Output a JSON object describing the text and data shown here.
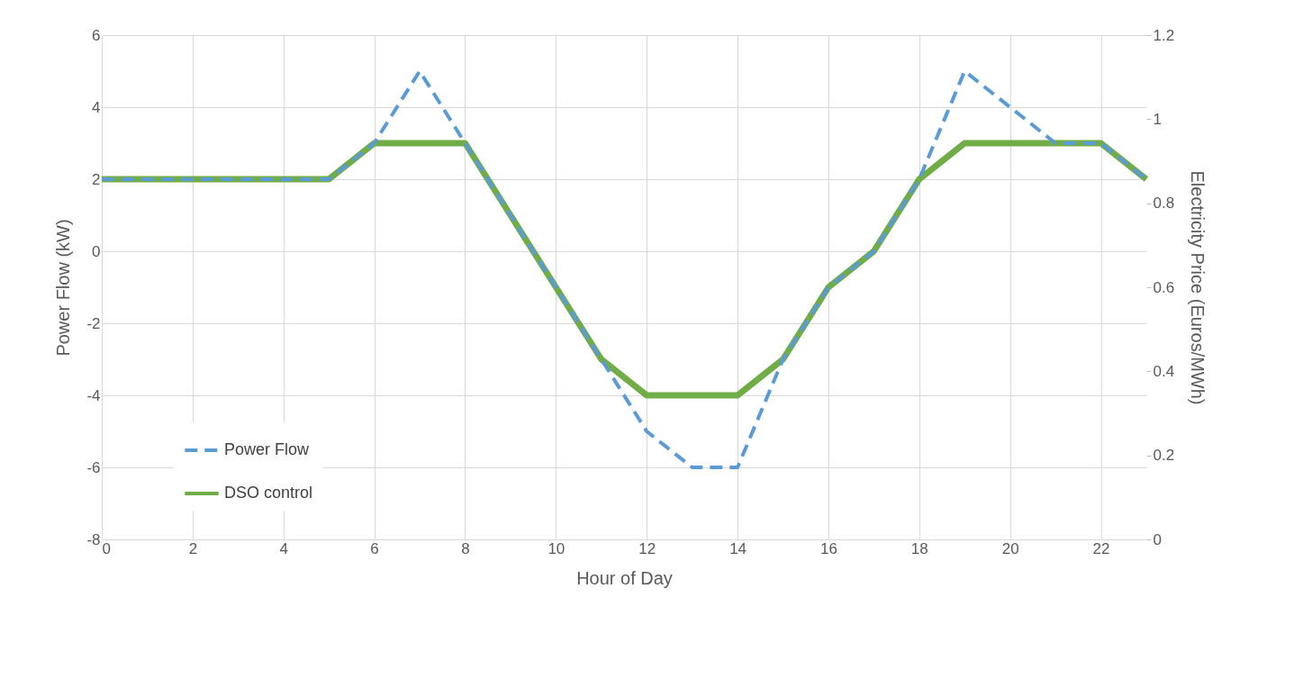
{
  "chart_data": {
    "type": "line",
    "xlabel": "Hour of Day",
    "ylabel": "Power Flow (kW)",
    "y2label": "Electricity Price (Euros/MWh)",
    "x": [
      0,
      1,
      2,
      3,
      4,
      5,
      6,
      7,
      8,
      9,
      10,
      11,
      12,
      13,
      14,
      15,
      16,
      17,
      18,
      19,
      20,
      21,
      22,
      23
    ],
    "series": [
      {
        "name": "Power Flow",
        "color": "#5b9bd5",
        "line_style": "dashed",
        "values": [
          2,
          2,
          2,
          2,
          2,
          2,
          3,
          5,
          3,
          1,
          -1,
          -3,
          -5,
          -6,
          -6,
          -3,
          -1,
          0,
          2,
          5,
          4,
          3,
          3,
          2
        ]
      },
      {
        "name": "DSO control",
        "color": "#70ad47",
        "line_style": "solid",
        "values": [
          2,
          2,
          2,
          2,
          2,
          2,
          3,
          3,
          3,
          1,
          -1,
          -3,
          -4,
          -4,
          -4,
          -3,
          -1,
          0,
          2,
          3,
          3,
          3,
          3,
          2
        ]
      }
    ],
    "xlim": [
      0,
      23
    ],
    "xticks": [
      0,
      2,
      4,
      6,
      8,
      10,
      12,
      14,
      16,
      18,
      20,
      22
    ],
    "ylim": [
      -8,
      6
    ],
    "yticks": [
      -8,
      -6,
      -4,
      -2,
      0,
      2,
      4,
      6
    ],
    "y2lim": [
      0,
      1.2
    ],
    "y2ticks": [
      {
        "value": 0,
        "label": "0"
      },
      0.2,
      0.4,
      0.6,
      0.8,
      {
        "value": 1,
        "label": "1"
      },
      1.2
    ],
    "grid": true,
    "legend": "bottom left"
  }
}
